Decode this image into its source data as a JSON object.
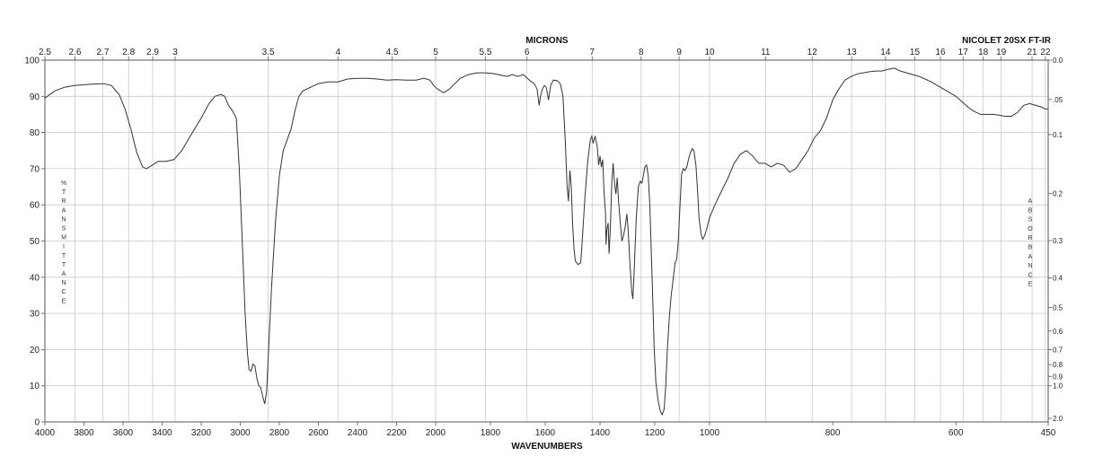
{
  "chart_data": {
    "type": "line",
    "title": "",
    "corner_label": "NICOLET 20SX FT-IR",
    "xlabel": "WAVENUMBERS",
    "top_xlabel": "MICRONS",
    "left_ylabel": "% TRANSMITTANCE",
    "right_ylabel": "ABSORBANCE",
    "x_segments": [
      [
        4000,
        2000
      ],
      [
        2000,
        1000
      ],
      [
        1000,
        450
      ]
    ],
    "ylim": [
      0,
      100
    ],
    "grid": true,
    "x_ticks": [
      4000,
      3800,
      3600,
      3400,
      3200,
      3000,
      2800,
      2600,
      2400,
      2200,
      2000,
      1800,
      1600,
      1400,
      1200,
      1000,
      800,
      600,
      450
    ],
    "x_tick_labels": [
      "4000",
      "3800",
      "3600",
      "3400",
      "3200",
      "3000",
      "2800",
      "2600",
      "2400",
      "2200",
      "2000",
      "1800",
      "1600",
      "1400",
      "1200",
      "1000",
      "800",
      "600",
      "450"
    ],
    "y_ticks": [
      0,
      10,
      20,
      30,
      40,
      50,
      60,
      70,
      80,
      90,
      100
    ],
    "y_tick_labels": [
      "0",
      "10",
      "20",
      "30",
      "40",
      "50",
      "60",
      "70",
      "80",
      "90",
      "100"
    ],
    "micron_ticks": [
      2.5,
      2.6,
      2.7,
      2.8,
      2.9,
      3,
      3.5,
      4,
      4.5,
      5,
      5.5,
      6,
      7,
      8,
      9,
      10,
      11,
      12,
      13,
      14,
      15,
      16,
      17,
      18,
      19,
      21,
      22
    ],
    "micron_tick_labels": [
      "2.5",
      "2.6",
      "2.7",
      "2.8",
      "2.9",
      "3",
      "3.5",
      "4",
      "4.5",
      "5",
      "5.5",
      "6",
      "7",
      "8",
      "9",
      "10",
      "11",
      "12",
      "13",
      "14",
      "15",
      "16",
      "17",
      "18",
      "19",
      "21",
      "22"
    ],
    "absorbance_ticks": [
      0.0,
      0.05,
      0.1,
      0.2,
      0.3,
      0.4,
      0.5,
      0.6,
      0.7,
      0.8,
      0.9,
      1.0,
      2.0
    ],
    "absorbance_tick_labels": [
      "0.0",
      ".05",
      "0.1",
      "0.2",
      "0.3",
      "0.4",
      "0.5",
      "0.6",
      "0.7",
      "0.8",
      "0.9",
      "1.0",
      "2.0"
    ],
    "series": [
      {
        "color": "#333333",
        "points": [
          [
            4000,
            89.5
          ],
          [
            3950,
            91.5
          ],
          [
            3900,
            92.5
          ],
          [
            3850,
            93.0
          ],
          [
            3800,
            93.2
          ],
          [
            3750,
            93.4
          ],
          [
            3700,
            93.5
          ],
          [
            3660,
            93.0
          ],
          [
            3620,
            90.5
          ],
          [
            3590,
            86.5
          ],
          [
            3560,
            81.0
          ],
          [
            3530,
            74.5
          ],
          [
            3500,
            70.5
          ],
          [
            3480,
            70.0
          ],
          [
            3450,
            71.0
          ],
          [
            3420,
            72.0
          ],
          [
            3380,
            72.0
          ],
          [
            3340,
            72.5
          ],
          [
            3300,
            75.0
          ],
          [
            3250,
            79.5
          ],
          [
            3200,
            84.0
          ],
          [
            3160,
            88.0
          ],
          [
            3130,
            90.0
          ],
          [
            3100,
            90.5
          ],
          [
            3080,
            90.0
          ],
          [
            3060,
            87.5
          ],
          [
            3040,
            86.0
          ],
          [
            3020,
            84.0
          ],
          [
            3005,
            70.0
          ],
          [
            2990,
            50.0
          ],
          [
            2975,
            30.0
          ],
          [
            2963,
            19.0
          ],
          [
            2955,
            14.5
          ],
          [
            2945,
            14.0
          ],
          [
            2935,
            16.0
          ],
          [
            2925,
            15.5
          ],
          [
            2915,
            12.0
          ],
          [
            2905,
            10.0
          ],
          [
            2895,
            9.5
          ],
          [
            2885,
            7.0
          ],
          [
            2875,
            5.0
          ],
          [
            2865,
            8.5
          ],
          [
            2855,
            20.0
          ],
          [
            2840,
            37.0
          ],
          [
            2820,
            55.0
          ],
          [
            2800,
            68.0
          ],
          [
            2780,
            75.0
          ],
          [
            2760,
            78.0
          ],
          [
            2740,
            81.0
          ],
          [
            2720,
            86.0
          ],
          [
            2700,
            90.0
          ],
          [
            2680,
            91.5
          ],
          [
            2640,
            92.5
          ],
          [
            2600,
            93.5
          ],
          [
            2550,
            94.0
          ],
          [
            2500,
            94.0
          ],
          [
            2450,
            94.8
          ],
          [
            2400,
            95.0
          ],
          [
            2350,
            95.0
          ],
          [
            2300,
            94.8
          ],
          [
            2250,
            94.5
          ],
          [
            2200,
            94.6
          ],
          [
            2150,
            94.5
          ],
          [
            2100,
            94.5
          ],
          [
            2060,
            95.0
          ],
          [
            2030,
            94.5
          ],
          [
            2010,
            93.0
          ],
          [
            1990,
            91.8
          ],
          [
            1970,
            91.0
          ],
          [
            1950,
            92.0
          ],
          [
            1930,
            93.5
          ],
          [
            1910,
            95.0
          ],
          [
            1880,
            96.0
          ],
          [
            1850,
            96.5
          ],
          [
            1820,
            96.5
          ],
          [
            1790,
            96.3
          ],
          [
            1760,
            95.8
          ],
          [
            1740,
            95.5
          ],
          [
            1720,
            96.0
          ],
          [
            1700,
            95.5
          ],
          [
            1680,
            96.0
          ],
          [
            1665,
            95.0
          ],
          [
            1650,
            94.0
          ],
          [
            1640,
            93.5
          ],
          [
            1630,
            92.0
          ],
          [
            1622,
            87.5
          ],
          [
            1616,
            90.5
          ],
          [
            1610,
            92.0
          ],
          [
            1603,
            93.0
          ],
          [
            1596,
            92.5
          ],
          [
            1588,
            89.0
          ],
          [
            1580,
            93.0
          ],
          [
            1570,
            94.5
          ],
          [
            1555,
            94.3
          ],
          [
            1545,
            93.5
          ],
          [
            1535,
            90.0
          ],
          [
            1527,
            78.0
          ],
          [
            1520,
            65.0
          ],
          [
            1515,
            61.0
          ],
          [
            1510,
            69.5
          ],
          [
            1505,
            65.0
          ],
          [
            1500,
            55.0
          ],
          [
            1495,
            48.0
          ],
          [
            1490,
            44.5
          ],
          [
            1480,
            43.5
          ],
          [
            1470,
            44.0
          ],
          [
            1465,
            50.0
          ],
          [
            1455,
            62.0
          ],
          [
            1445,
            72.0
          ],
          [
            1435,
            78.0
          ],
          [
            1430,
            79.0
          ],
          [
            1425,
            77.0
          ],
          [
            1418,
            79.0
          ],
          [
            1410,
            76.0
          ],
          [
            1405,
            71.0
          ],
          [
            1400,
            73.5
          ],
          [
            1395,
            70.5
          ],
          [
            1390,
            72.5
          ],
          [
            1385,
            63.0
          ],
          [
            1380,
            58.0
          ],
          [
            1378,
            49.0
          ],
          [
            1375,
            53.0
          ],
          [
            1370,
            55.0
          ],
          [
            1367,
            46.5
          ],
          [
            1362,
            54.0
          ],
          [
            1357,
            66.0
          ],
          [
            1352,
            71.5
          ],
          [
            1347,
            66.0
          ],
          [
            1342,
            63.0
          ],
          [
            1337,
            67.5
          ],
          [
            1332,
            61.0
          ],
          [
            1326,
            55.0
          ],
          [
            1320,
            50.0
          ],
          [
            1314,
            51.5
          ],
          [
            1308,
            54.0
          ],
          [
            1302,
            57.5
          ],
          [
            1297,
            53.0
          ],
          [
            1290,
            43.0
          ],
          [
            1284,
            36.0
          ],
          [
            1280,
            34.0
          ],
          [
            1275,
            42.0
          ],
          [
            1268,
            56.0
          ],
          [
            1260,
            65.0
          ],
          [
            1253,
            66.5
          ],
          [
            1247,
            66.0
          ],
          [
            1242,
            68.0
          ],
          [
            1236,
            70.5
          ],
          [
            1230,
            71.0
          ],
          [
            1224,
            68.0
          ],
          [
            1218,
            60.0
          ],
          [
            1210,
            40.0
          ],
          [
            1202,
            20.0
          ],
          [
            1196,
            11.0
          ],
          [
            1188,
            6.0
          ],
          [
            1180,
            3.0
          ],
          [
            1173,
            2.0
          ],
          [
            1166,
            3.5
          ],
          [
            1160,
            10.0
          ],
          [
            1154,
            20.0
          ],
          [
            1147,
            29.0
          ],
          [
            1140,
            35.0
          ],
          [
            1132,
            40.0
          ],
          [
            1126,
            44.0
          ],
          [
            1120,
            45.0
          ],
          [
            1114,
            50.0
          ],
          [
            1108,
            60.0
          ],
          [
            1102,
            68.5
          ],
          [
            1096,
            70.0
          ],
          [
            1090,
            69.5
          ],
          [
            1083,
            70.5
          ],
          [
            1077,
            72.5
          ],
          [
            1070,
            74.5
          ],
          [
            1063,
            75.5
          ],
          [
            1057,
            75.0
          ],
          [
            1050,
            71.0
          ],
          [
            1044,
            64.0
          ],
          [
            1038,
            56.0
          ],
          [
            1031,
            52.0
          ],
          [
            1025,
            50.5
          ],
          [
            1018,
            51.5
          ],
          [
            1010,
            53.5
          ],
          [
            1000,
            56.5
          ],
          [
            990,
            60.5
          ],
          [
            980,
            64.0
          ],
          [
            970,
            67.5
          ],
          [
            960,
            71.5
          ],
          [
            950,
            74.0
          ],
          [
            940,
            75.0
          ],
          [
            930,
            73.5
          ],
          [
            920,
            71.5
          ],
          [
            910,
            71.5
          ],
          [
            900,
            70.5
          ],
          [
            890,
            71.5
          ],
          [
            880,
            71.0
          ],
          [
            870,
            69.0
          ],
          [
            860,
            70.0
          ],
          [
            850,
            72.5
          ],
          [
            840,
            75.0
          ],
          [
            830,
            78.5
          ],
          [
            820,
            80.5
          ],
          [
            810,
            84.0
          ],
          [
            800,
            89.0
          ],
          [
            790,
            92.0
          ],
          [
            780,
            94.5
          ],
          [
            770,
            95.5
          ],
          [
            760,
            96.2
          ],
          [
            750,
            96.5
          ],
          [
            740,
            96.8
          ],
          [
            730,
            97.0
          ],
          [
            720,
            97.0
          ],
          [
            710,
            97.5
          ],
          [
            700,
            97.8
          ],
          [
            690,
            97.0
          ],
          [
            680,
            96.5
          ],
          [
            670,
            96.0
          ],
          [
            660,
            95.5
          ],
          [
            650,
            94.8
          ],
          [
            640,
            94.0
          ],
          [
            630,
            93.0
          ],
          [
            620,
            92.0
          ],
          [
            610,
            91.0
          ],
          [
            600,
            90.0
          ],
          [
            590,
            88.5
          ],
          [
            580,
            87.0
          ],
          [
            570,
            85.8
          ],
          [
            560,
            85.0
          ],
          [
            550,
            85.0
          ],
          [
            540,
            85.0
          ],
          [
            530,
            84.8
          ],
          [
            520,
            84.5
          ],
          [
            510,
            84.5
          ],
          [
            500,
            85.5
          ],
          [
            490,
            87.5
          ],
          [
            480,
            88.0
          ],
          [
            470,
            87.5
          ],
          [
            460,
            87.0
          ],
          [
            455,
            86.5
          ],
          [
            450,
            86.5
          ]
        ]
      }
    ]
  }
}
